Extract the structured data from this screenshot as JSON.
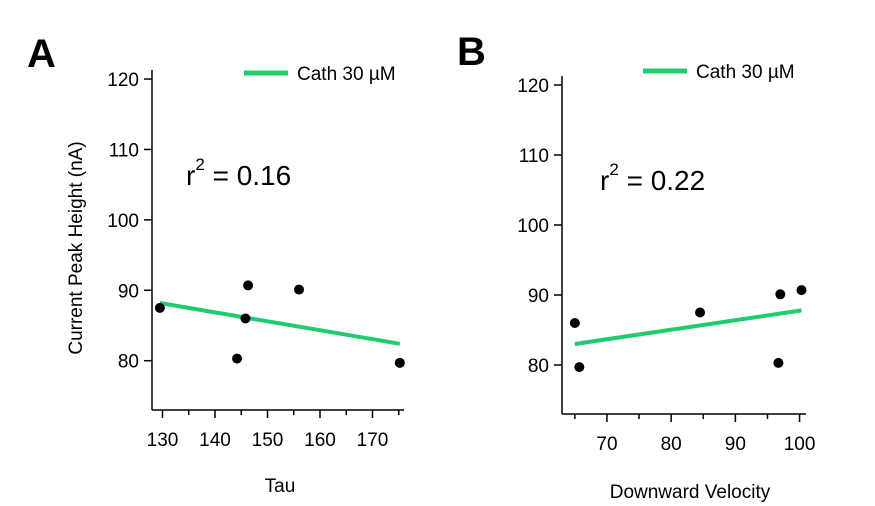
{
  "chart_data": [
    {
      "type": "scatter",
      "panel": "A",
      "xlabel": "Tau",
      "ylabel": "Current Peak Height (nA)",
      "xlim": [
        128,
        176
      ],
      "ylim": [
        73,
        121
      ],
      "xticks": [
        130,
        140,
        150,
        160,
        170
      ],
      "xticks_minor": [
        135,
        145,
        155,
        165,
        175
      ],
      "yticks": [
        80,
        90,
        100,
        110,
        120
      ],
      "annotation": {
        "base": "r",
        "exp": "2",
        "rest": " = 0.16"
      },
      "legend": {
        "label": "Cath 30 µM",
        "color": "#1fcc6e",
        "position": "top-right"
      },
      "points": [
        {
          "x": 129.5,
          "y": 87.5
        },
        {
          "x": 144.2,
          "y": 80.3
        },
        {
          "x": 145.8,
          "y": 86.0
        },
        {
          "x": 146.3,
          "y": 90.7
        },
        {
          "x": 156.0,
          "y": 90.1
        },
        {
          "x": 175.2,
          "y": 79.7
        }
      ],
      "fit_line": {
        "x": [
          129.5,
          175.2
        ],
        "y": [
          88.2,
          82.4
        ]
      }
    },
    {
      "type": "scatter",
      "panel": "B",
      "xlabel": "Downward Velocity",
      "ylabel": "",
      "xlim": [
        63,
        101
      ],
      "ylim": [
        73,
        121
      ],
      "xticks": [
        70,
        80,
        90,
        100
      ],
      "xticks_minor": [
        65,
        75,
        85,
        95
      ],
      "yticks": [
        80,
        90,
        100,
        110,
        120
      ],
      "annotation": {
        "base": "r",
        "exp": "2",
        "rest": " = 0.22"
      },
      "legend": {
        "label": "Cath 30 µM",
        "color": "#1fcc6e",
        "position": "top-right"
      },
      "points": [
        {
          "x": 65.0,
          "y": 86.0
        },
        {
          "x": 65.7,
          "y": 79.7
        },
        {
          "x": 84.5,
          "y": 87.5
        },
        {
          "x": 96.7,
          "y": 80.3
        },
        {
          "x": 97.0,
          "y": 90.1
        },
        {
          "x": 100.3,
          "y": 90.7
        }
      ],
      "fit_line": {
        "x": [
          65.0,
          100.3
        ],
        "y": [
          83.0,
          87.8
        ]
      }
    }
  ]
}
